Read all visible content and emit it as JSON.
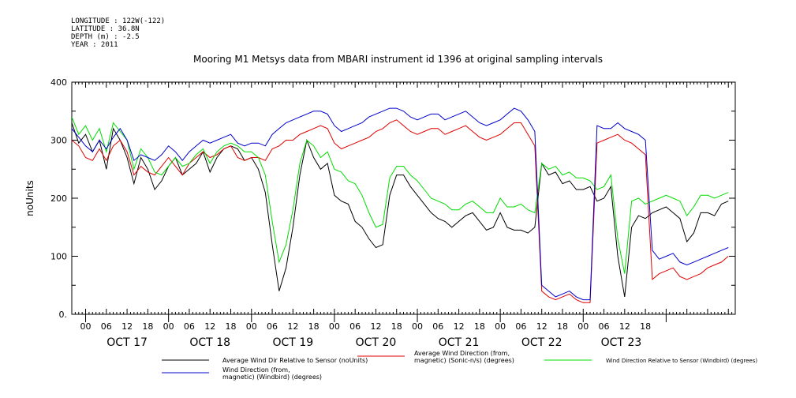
{
  "header": {
    "longitude": "LONGITUDE : 122W(-122)",
    "latitude": "LATITUDE : 36.8N",
    "depth": "DEPTH (m) : -2.5",
    "year": "YEAR : 2011",
    "title": "Mooring M1 Metsys data from MBARI instrument id 1396 at original sampling intervals"
  },
  "chart_data": {
    "type": "line",
    "title": "Mooring M1 Metsys data from MBARI instrument id 1396 at original sampling intervals",
    "ylabel": "noUnits",
    "xlabel": "",
    "ylim": [
      0,
      400
    ],
    "yticks": [
      0,
      100,
      200,
      300,
      400
    ],
    "ytick_labels": [
      "0.",
      "100",
      "200",
      "300",
      "400"
    ],
    "xlim_hours": [
      -4,
      188
    ],
    "hour_tick_labels": [
      "00",
      "06",
      "12",
      "18",
      "00",
      "06",
      "12",
      "18",
      "00",
      "06",
      "12",
      "18",
      "00",
      "06",
      "12",
      "18",
      "00",
      "06",
      "12",
      "18",
      "00",
      "06",
      "12",
      "18",
      "00",
      "06",
      "12",
      "18"
    ],
    "hour_tick_positions": [
      0,
      6,
      12,
      18,
      24,
      30,
      36,
      42,
      48,
      54,
      60,
      66,
      72,
      78,
      84,
      90,
      96,
      102,
      108,
      114,
      120,
      126,
      132,
      138,
      144,
      150,
      156,
      162
    ],
    "day_labels": [
      "OCT 17",
      "OCT 18",
      "OCT 19",
      "OCT 20",
      "OCT 21",
      "OCT 22",
      "OCT 23"
    ],
    "day_label_positions": [
      12,
      36,
      60,
      84,
      108,
      132,
      155
    ],
    "grid": false,
    "legend_position": "bottom",
    "x_hours": [
      -4,
      -2,
      0,
      2,
      4,
      6,
      8,
      10,
      12,
      14,
      16,
      18,
      20,
      22,
      24,
      26,
      28,
      30,
      32,
      34,
      36,
      38,
      40,
      42,
      44,
      46,
      48,
      50,
      52,
      54,
      56,
      58,
      60,
      62,
      64,
      66,
      68,
      70,
      72,
      74,
      76,
      78,
      80,
      82,
      84,
      86,
      88,
      90,
      92,
      94,
      96,
      98,
      100,
      102,
      104,
      106,
      108,
      110,
      112,
      114,
      116,
      118,
      120,
      122,
      124,
      126,
      128,
      130,
      132,
      134,
      136,
      138,
      140,
      142,
      144,
      146,
      148,
      150,
      152,
      154,
      156,
      158,
      160,
      162,
      164,
      166,
      168,
      170,
      172,
      174,
      176,
      178,
      180,
      182,
      184,
      186
    ],
    "series": [
      {
        "name": "Average Wind Dir Relative to Sensor (noUnits)",
        "color": "#000000",
        "values": [
          330,
          295,
          310,
          280,
          300,
          250,
          320,
          300,
          270,
          225,
          270,
          250,
          215,
          230,
          255,
          270,
          240,
          250,
          260,
          280,
          245,
          270,
          285,
          290,
          285,
          265,
          270,
          250,
          210,
          120,
          40,
          80,
          150,
          240,
          300,
          270,
          250,
          260,
          205,
          195,
          190,
          160,
          150,
          130,
          115,
          120,
          205,
          240,
          240,
          220,
          205,
          190,
          175,
          165,
          160,
          150,
          160,
          170,
          175,
          160,
          145,
          150,
          175,
          150,
          145,
          145,
          140,
          150,
          260,
          240,
          245,
          225,
          230,
          215,
          215,
          220,
          195,
          200,
          220,
          100,
          30,
          150,
          170,
          165,
          175,
          180,
          185,
          175,
          165,
          125,
          140,
          175,
          175,
          170,
          190,
          195
        ]
      },
      {
        "name": "Average Wind Direction (from, magnetic) (Sonic-n/s) (degrees)",
        "color": "#e00000",
        "values": [
          300,
          290,
          270,
          265,
          285,
          265,
          290,
          300,
          280,
          240,
          255,
          245,
          240,
          255,
          270,
          255,
          240,
          260,
          270,
          280,
          270,
          275,
          285,
          290,
          270,
          265,
          270,
          270,
          265,
          285,
          290,
          300,
          300,
          310,
          315,
          320,
          325,
          320,
          295,
          285,
          290,
          295,
          300,
          305,
          315,
          320,
          330,
          335,
          325,
          315,
          310,
          315,
          320,
          320,
          310,
          315,
          320,
          325,
          315,
          305,
          300,
          305,
          310,
          320,
          330,
          330,
          310,
          290,
          40,
          30,
          25,
          30,
          35,
          25,
          20,
          20,
          295,
          300,
          305,
          310,
          300,
          295,
          285,
          275,
          60,
          70,
          75,
          80,
          65,
          60,
          65,
          70,
          80,
          85,
          90,
          100
        ]
      },
      {
        "name": "Wind Direction Relative to Sensor (Windbird) (degrees)",
        "color": "#00dd00",
        "values": [
          340,
          310,
          325,
          300,
          320,
          280,
          330,
          315,
          300,
          250,
          285,
          270,
          245,
          240,
          255,
          270,
          255,
          260,
          275,
          285,
          260,
          280,
          290,
          295,
          290,
          280,
          280,
          270,
          240,
          160,
          90,
          120,
          180,
          260,
          300,
          290,
          270,
          280,
          250,
          245,
          230,
          225,
          205,
          175,
          150,
          155,
          235,
          255,
          255,
          240,
          230,
          215,
          200,
          195,
          190,
          180,
          180,
          190,
          195,
          185,
          175,
          175,
          200,
          185,
          185,
          190,
          180,
          175,
          260,
          250,
          255,
          240,
          245,
          235,
          235,
          230,
          215,
          220,
          240,
          130,
          70,
          195,
          200,
          190,
          195,
          200,
          205,
          200,
          195,
          170,
          185,
          205,
          205,
          200,
          205,
          210
        ]
      },
      {
        "name": "Wind Direction (from, magnetic) (Windbird) (degrees)",
        "color": "#0000cc",
        "values": [
          320,
          305,
          290,
          280,
          300,
          285,
          305,
          320,
          300,
          265,
          275,
          270,
          265,
          275,
          290,
          280,
          265,
          280,
          290,
          300,
          295,
          300,
          305,
          310,
          295,
          290,
          295,
          295,
          290,
          310,
          320,
          330,
          335,
          340,
          345,
          350,
          350,
          345,
          325,
          315,
          320,
          325,
          330,
          340,
          345,
          350,
          355,
          355,
          350,
          340,
          335,
          340,
          345,
          345,
          335,
          340,
          345,
          350,
          340,
          330,
          325,
          330,
          335,
          345,
          355,
          350,
          335,
          315,
          50,
          40,
          30,
          35,
          40,
          30,
          25,
          25,
          325,
          320,
          320,
          330,
          320,
          315,
          310,
          300,
          110,
          95,
          100,
          105,
          90,
          85,
          90,
          95,
          100,
          105,
          110,
          115
        ]
      }
    ],
    "legend_entries": [
      "Average Wind Dir Relative to Sensor (noUnits)",
      "Average Wind Direction (from,\nmagnetic) (Sonic-n/s) (degrees)",
      "Wind Direction Relative to Sensor (Windbird) (degrees)",
      "Wind Direction (from,\nmagnetic) (Windbird) (degrees)"
    ]
  }
}
